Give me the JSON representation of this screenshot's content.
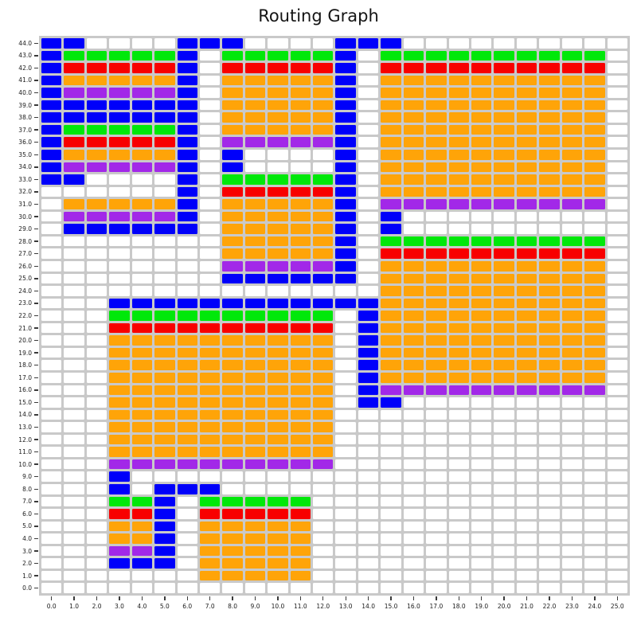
{
  "chart_data": {
    "type": "heatmap",
    "title": "Routing Graph",
    "xlabel": "",
    "ylabel": "",
    "x_range": [
      0.0,
      25.0
    ],
    "y_range": [
      0.0,
      44.0
    ],
    "grid_on": true,
    "legend": null,
    "x_ticks": [
      "0.0",
      "1.0",
      "2.0",
      "3.0",
      "4.0",
      "5.0",
      "6.0",
      "7.0",
      "8.0",
      "9.0",
      "10.0",
      "11.0",
      "12.0",
      "13.0",
      "14.0",
      "15.0",
      "16.0",
      "17.0",
      "18.0",
      "19.0",
      "20.0",
      "21.0",
      "22.0",
      "23.0",
      "24.0",
      "25.0"
    ],
    "y_ticks_top_to_bottom": [
      "44.0",
      "43.0",
      "42.0",
      "41.0",
      "40.0",
      "39.0",
      "38.0",
      "37.0",
      "36.0",
      "35.0",
      "34.0",
      "33.0",
      "32.0",
      "31.0",
      "30.0",
      "29.0",
      "28.0",
      "27.0",
      "26.0",
      "25.0",
      "24.0",
      "23.0",
      "22.0",
      "21.0",
      "20.0",
      "19.0",
      "18.0",
      "17.0",
      "16.0",
      "15.0",
      "14.0",
      "13.0",
      "12.0",
      "11.0",
      "10.0",
      "9.0",
      "8.0",
      "7.0",
      "6.0",
      "5.0",
      "4.0",
      "3.0",
      "2.0",
      "1.0",
      "0.0"
    ],
    "cell_colors": {
      "B": "#0000fa",
      "G": "#00e80a",
      "R": "#f80000",
      "O": "#ffa408",
      "P": "#a228e8",
      ".": "#ffffff"
    },
    "lattice_color": "#c9c9c9",
    "background_color": "#ffffff",
    "rows_top_to_bottom": [
      "BB....BBB....BBB..........",
      "BGGGGGB.GGGGGB.GGGGGGGGGG.",
      "BRRRRRB.RRRRRB.RRRRRRRRRR.",
      "BOOOOOB.OOOOOB.OOOOOOOOOO.",
      "BPPPPPB.OOOOOB.OOOOOOOOOO.",
      "BBBBBBB.OOOOOB.OOOOOOOOOO.",
      "BBBBBBB.OOOOOB.OOOOOOOOOO.",
      "BGGGGGB.OOOOOB.OOOOOOOOOO.",
      "BRRRRRB.PPPPPB.OOOOOOOOOO.",
      "BOOOOOB.B....B.OOOOOOOOOO.",
      "BPPPPPB.B....B.OOOOOOOOOO.",
      "BB....B.GGGGGB.OOOOOOOOOO.",
      "......B.RRRRRB.OOOOOOOOOO.",
      ".OOOOOB.OOOOOB.PPPPPPPPPP.",
      ".PPPPPB.OOOOOB.B..........",
      ".BBBBBB.OOOOOB.B..........",
      "........OOOOOB.GGGGGGGGGG.",
      "........OOOOOB.RRRRRRRRRR.",
      "........PPPPPB.OOOOOOOOOO.",
      "........BBBBBB.OOOOOOOOOO.",
      "...............OOOOOOOOOO.",
      "...BBBBBBBBBBBBOOOOOOOOOO.",
      "...GGGGGGGGGG.BOOOOOOOOOO.",
      "...RRRRRRRRRR.BOOOOOOOOOO.",
      "...OOOOOOOOOO.BOOOOOOOOOO.",
      "...OOOOOOOOOO.BOOOOOOOOOO.",
      "...OOOOOOOOOO.BOOOOOOOOOO.",
      "...OOOOOOOOOO.BOOOOOOOOOO.",
      "...OOOOOOOOOO.BPPPPPPPPPP.",
      "...OOOOOOOOOO.BB..........",
      "...OOOOOOOOOO.............",
      "...OOOOOOOOOO.............",
      "...OOOOOOOOOO.............",
      "...OOOOOOOOOO.............",
      "...PPPPPPPPPP.............",
      "...B......................",
      "...B.BBB..................",
      "...GGB.GGGGG..............",
      "...RRB.RRRRR..............",
      "...OOB.OOOOO..............",
      "...OOB.OOOOO..............",
      "...PPB.OOOOO..............",
      "...BBB.OOOOO..............",
      ".......OOOOO..............",
      ".........................."
    ]
  }
}
